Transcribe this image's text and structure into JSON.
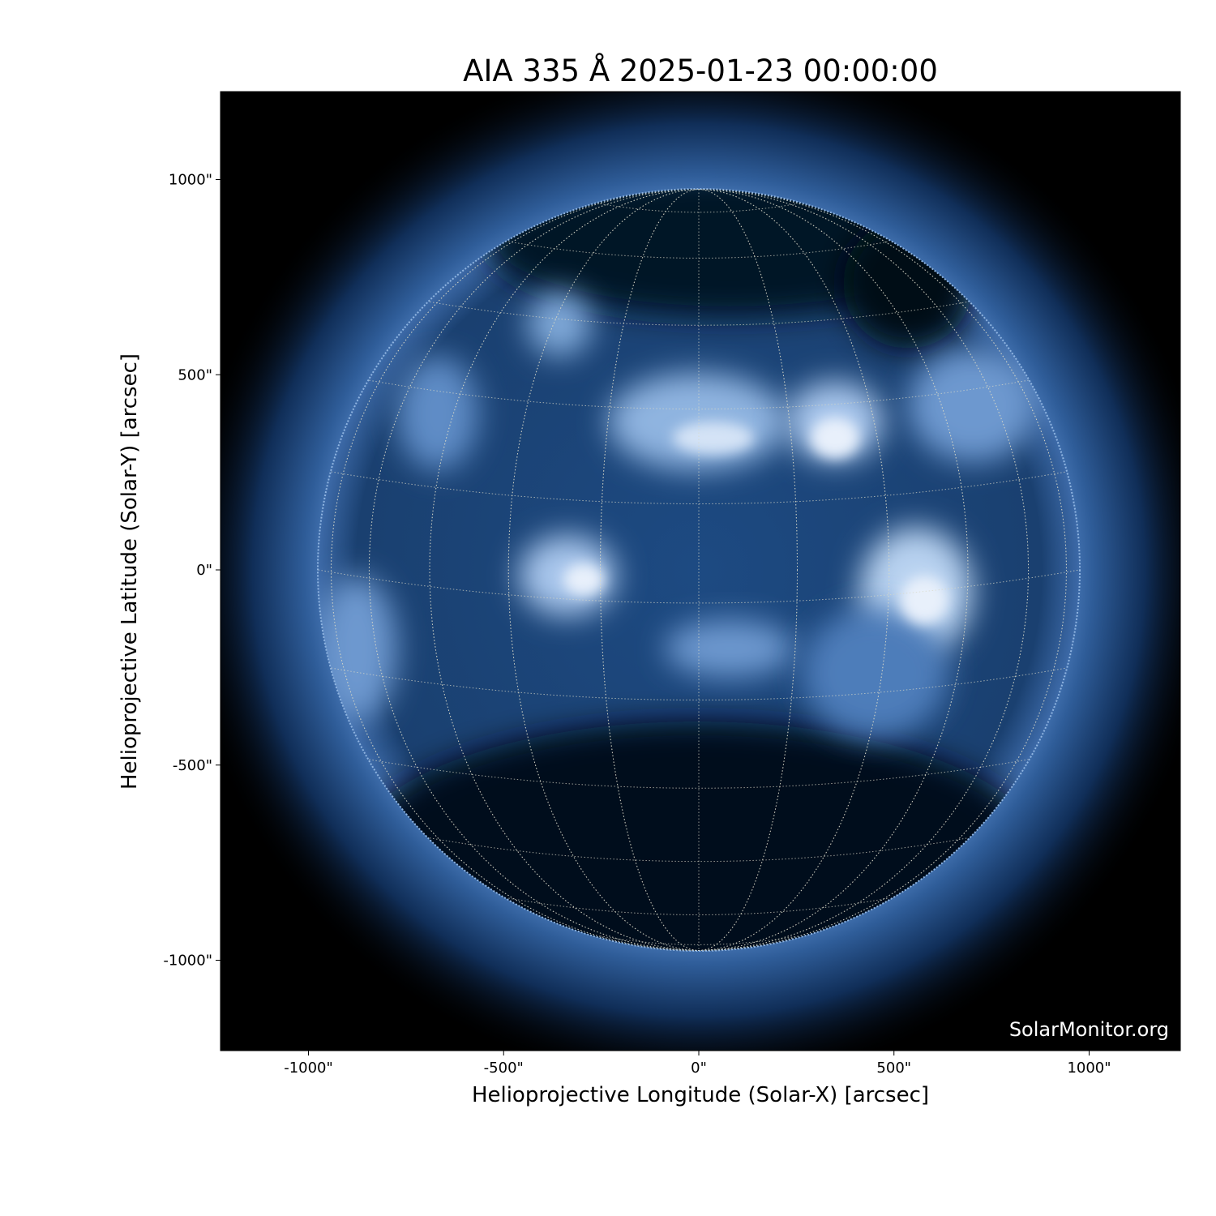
{
  "chart_data": {
    "type": "image",
    "title": "AIA 335 Å 2025-01-23 00:00:00",
    "xlabel": "Helioprojective Longitude (Solar-X) [arcsec]",
    "ylabel": "Helioprojective Latitude (Solar-Y) [arcsec]",
    "xlim": [
      -1225,
      1235
    ],
    "ylim": [
      -1230,
      1230
    ],
    "xticks": [
      -1000,
      -500,
      0,
      500,
      1000
    ],
    "xtick_labels": [
      "-1000\"",
      "-500\"",
      "0\"",
      "500\"",
      "1000\""
    ],
    "yticks": [
      1000,
      500,
      0,
      -500,
      -1000
    ],
    "ytick_labels": [
      "1000\"",
      "500\"",
      "0\"",
      "-500\"",
      "-1000\""
    ],
    "solar_radius_arcsec": 975,
    "grid": "heliographic, 15° spacing, dotted",
    "colormap": [
      "#000000",
      "#0e2a50",
      "#2a5a96",
      "#7fa8d8",
      "#ffffff"
    ]
  },
  "watermark": "SolarMonitor.org"
}
